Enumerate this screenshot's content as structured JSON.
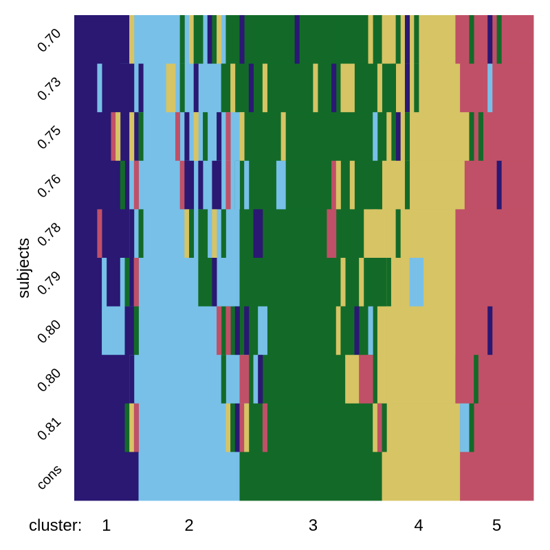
{
  "chart_data": {
    "type": "heatmap",
    "title": "",
    "ylabel": "subjects",
    "xlabel_prefix": "cluster:",
    "rows": [
      "0.70",
      "0.73",
      "0.75",
      "0.76",
      "0.78",
      "0.79",
      "0.80",
      "0.80",
      "0.81",
      "cons"
    ],
    "n_columns": 100,
    "palette": {
      "1": "#2a1873",
      "2": "#78c0e8",
      "3": "#136a28",
      "4": "#d6c465",
      "5": "#c05067"
    },
    "cluster_labels": [
      {
        "label": "1",
        "col": 7
      },
      {
        "label": "2",
        "col": 25
      },
      {
        "label": "3",
        "col": 52
      },
      {
        "label": "4",
        "col": 75
      },
      {
        "label": "5",
        "col": 92
      }
    ],
    "background": [
      [
        [
          0,
          12,
          "1"
        ],
        [
          12,
          34,
          "2"
        ],
        [
          34,
          67,
          "3"
        ],
        [
          67,
          83,
          "4"
        ],
        [
          83,
          100,
          "5"
        ]
      ],
      [
        [
          0,
          10,
          "1"
        ],
        [
          10,
          32,
          "2"
        ],
        [
          32,
          70,
          "3"
        ],
        [
          70,
          84,
          "4"
        ],
        [
          84,
          100,
          "5"
        ]
      ],
      [
        [
          0,
          14,
          "1"
        ],
        [
          14,
          37,
          "2"
        ],
        [
          37,
          70,
          "3"
        ],
        [
          70,
          86,
          "4"
        ],
        [
          86,
          100,
          "5"
        ]
      ],
      [
        [
          0,
          12,
          "1"
        ],
        [
          12,
          35,
          "2"
        ],
        [
          35,
          67,
          "3"
        ],
        [
          67,
          85,
          "4"
        ],
        [
          85,
          100,
          "5"
        ]
      ],
      [
        [
          0,
          12,
          "1"
        ],
        [
          12,
          36,
          "2"
        ],
        [
          36,
          63,
          "3"
        ],
        [
          63,
          83,
          "4"
        ],
        [
          83,
          100,
          "5"
        ]
      ],
      [
        [
          0,
          13,
          "1"
        ],
        [
          13,
          36,
          "2"
        ],
        [
          36,
          68,
          "3"
        ],
        [
          68,
          83,
          "4"
        ],
        [
          83,
          100,
          "5"
        ]
      ],
      [
        [
          0,
          6,
          "1"
        ],
        [
          6,
          32,
          "2"
        ],
        [
          32,
          66,
          "3"
        ],
        [
          66,
          83,
          "4"
        ],
        [
          83,
          100,
          "5"
        ]
      ],
      [
        [
          0,
          12,
          "1"
        ],
        [
          12,
          38,
          "2"
        ],
        [
          38,
          66,
          "3"
        ],
        [
          66,
          83,
          "4"
        ],
        [
          83,
          100,
          "5"
        ]
      ],
      [
        [
          0,
          12,
          "1"
        ],
        [
          12,
          38,
          "2"
        ],
        [
          38,
          67,
          "3"
        ],
        [
          67,
          84,
          "4"
        ],
        [
          84,
          100,
          "5"
        ]
      ],
      [
        [
          0,
          14,
          "1"
        ],
        [
          14,
          36,
          "2"
        ],
        [
          36,
          67,
          "3"
        ],
        [
          67,
          84,
          "4"
        ],
        [
          84,
          100,
          "5"
        ]
      ]
    ],
    "bands": [
      [
        [
          12,
          13,
          "4"
        ],
        [
          23,
          24,
          "3"
        ],
        [
          25,
          26,
          "4"
        ],
        [
          26,
          28,
          "3"
        ],
        [
          29,
          30,
          "1"
        ],
        [
          30,
          31,
          "3"
        ],
        [
          31,
          32,
          "4"
        ],
        [
          33,
          34,
          "3"
        ],
        [
          36,
          37,
          "1"
        ],
        [
          39,
          40,
          "3"
        ],
        [
          48,
          49,
          "1"
        ],
        [
          56,
          57,
          "3"
        ],
        [
          64,
          65,
          "4"
        ],
        [
          70,
          71,
          "3"
        ],
        [
          72,
          73,
          "1"
        ],
        [
          74,
          75,
          "3"
        ],
        [
          84,
          85,
          "5"
        ],
        [
          86,
          87,
          "3"
        ],
        [
          90,
          91,
          "1"
        ],
        [
          92,
          93,
          "3"
        ]
      ],
      [
        [
          5,
          6,
          "2"
        ],
        [
          8,
          13,
          "1"
        ],
        [
          14,
          15,
          "1"
        ],
        [
          20,
          22,
          "4"
        ],
        [
          23,
          24,
          "3"
        ],
        [
          26,
          27,
          "1"
        ],
        [
          32,
          33,
          "3"
        ],
        [
          34,
          35,
          "4"
        ],
        [
          38,
          39,
          "1"
        ],
        [
          41,
          42,
          "4"
        ],
        [
          43,
          44,
          "3"
        ],
        [
          52,
          53,
          "4"
        ],
        [
          56,
          57,
          "1"
        ],
        [
          58,
          61,
          "4"
        ],
        [
          63,
          64,
          "3"
        ],
        [
          66,
          67,
          "4"
        ],
        [
          69,
          70,
          "3"
        ],
        [
          72,
          73,
          "1"
        ],
        [
          74,
          75,
          "3"
        ],
        [
          90,
          91,
          "2"
        ]
      ],
      [
        [
          8,
          9,
          "5"
        ],
        [
          9,
          10,
          "4"
        ],
        [
          12,
          13,
          "4"
        ],
        [
          14,
          15,
          "3"
        ],
        [
          22,
          23,
          "5"
        ],
        [
          24,
          25,
          "1"
        ],
        [
          26,
          27,
          "4"
        ],
        [
          28,
          29,
          "3"
        ],
        [
          31,
          32,
          "1"
        ],
        [
          33,
          34,
          "5"
        ],
        [
          36,
          37,
          "4"
        ],
        [
          45,
          46,
          "4"
        ],
        [
          65,
          66,
          "2"
        ],
        [
          68,
          69,
          "4"
        ],
        [
          70,
          71,
          "1"
        ],
        [
          72,
          73,
          "3"
        ],
        [
          86,
          87,
          "3"
        ],
        [
          88,
          89,
          "3"
        ]
      ],
      [
        [
          10,
          11,
          "3"
        ],
        [
          13,
          14,
          "5"
        ],
        [
          23,
          24,
          "5"
        ],
        [
          24,
          26,
          "1"
        ],
        [
          27,
          28,
          "1"
        ],
        [
          30,
          32,
          "1"
        ],
        [
          33,
          34,
          "5"
        ],
        [
          35,
          36,
          "2"
        ],
        [
          37,
          38,
          "2"
        ],
        [
          44,
          46,
          "2"
        ],
        [
          56,
          57,
          "5"
        ],
        [
          57,
          58,
          "4"
        ],
        [
          60,
          61,
          "4"
        ],
        [
          63,
          64,
          "3"
        ],
        [
          66,
          67,
          "3"
        ],
        [
          69,
          70,
          "4"
        ],
        [
          72,
          73,
          "3"
        ],
        [
          92,
          93,
          "1"
        ]
      ],
      [
        [
          5,
          6,
          "5"
        ],
        [
          12,
          13,
          "1"
        ],
        [
          14,
          15,
          "3"
        ],
        [
          24,
          25,
          "4"
        ],
        [
          25,
          26,
          "3"
        ],
        [
          27,
          29,
          "3"
        ],
        [
          30,
          31,
          "4"
        ],
        [
          32,
          33,
          "3"
        ],
        [
          39,
          41,
          "1"
        ],
        [
          55,
          57,
          "5"
        ],
        [
          59,
          60,
          "3"
        ],
        [
          62,
          63,
          "3"
        ],
        [
          65,
          66,
          "4"
        ],
        [
          68,
          69,
          "4"
        ],
        [
          70,
          71,
          "3"
        ]
      ],
      [
        [
          6,
          7,
          "2"
        ],
        [
          10,
          11,
          "2"
        ],
        [
          11,
          12,
          "3"
        ],
        [
          13,
          14,
          "5"
        ],
        [
          27,
          30,
          "3"
        ],
        [
          30,
          31,
          "1"
        ],
        [
          58,
          59,
          "4"
        ],
        [
          60,
          61,
          "3"
        ],
        [
          62,
          63,
          "4"
        ],
        [
          64,
          65,
          "3"
        ],
        [
          68,
          69,
          "3"
        ],
        [
          69,
          71,
          "4"
        ],
        [
          73,
          76,
          "2"
        ]
      ],
      [
        [
          11,
          13,
          "1"
        ],
        [
          13,
          14,
          "3"
        ],
        [
          31,
          32,
          "5"
        ],
        [
          33,
          34,
          "5"
        ],
        [
          35,
          36,
          "1"
        ],
        [
          37,
          38,
          "1"
        ],
        [
          40,
          42,
          "2"
        ],
        [
          57,
          58,
          "4"
        ],
        [
          58,
          59,
          "3"
        ],
        [
          61,
          62,
          "1"
        ],
        [
          64,
          65,
          "2"
        ],
        [
          68,
          69,
          "4"
        ],
        [
          90,
          91,
          "1"
        ]
      ],
      [
        [
          12,
          13,
          "1"
        ],
        [
          32,
          33,
          "3"
        ],
        [
          36,
          38,
          "5"
        ],
        [
          39,
          40,
          "2"
        ],
        [
          40,
          41,
          "1"
        ],
        [
          59,
          62,
          "4"
        ],
        [
          62,
          65,
          "5"
        ],
        [
          67,
          68,
          "4"
        ],
        [
          83,
          88,
          "5"
        ],
        [
          87,
          88,
          "3"
        ],
        [
          88,
          89,
          "5"
        ]
      ],
      [
        [
          11,
          12,
          "3"
        ],
        [
          12,
          13,
          "4"
        ],
        [
          13,
          14,
          "5"
        ],
        [
          33,
          34,
          "4"
        ],
        [
          34,
          35,
          "3"
        ],
        [
          35,
          36,
          "1"
        ],
        [
          36,
          37,
          "5"
        ],
        [
          37,
          38,
          "4"
        ],
        [
          41,
          42,
          "5"
        ],
        [
          65,
          66,
          "4"
        ],
        [
          66,
          67,
          "5"
        ],
        [
          67,
          68,
          "3"
        ],
        [
          84,
          86,
          "2"
        ],
        [
          86,
          87,
          "3"
        ]
      ],
      []
    ]
  }
}
